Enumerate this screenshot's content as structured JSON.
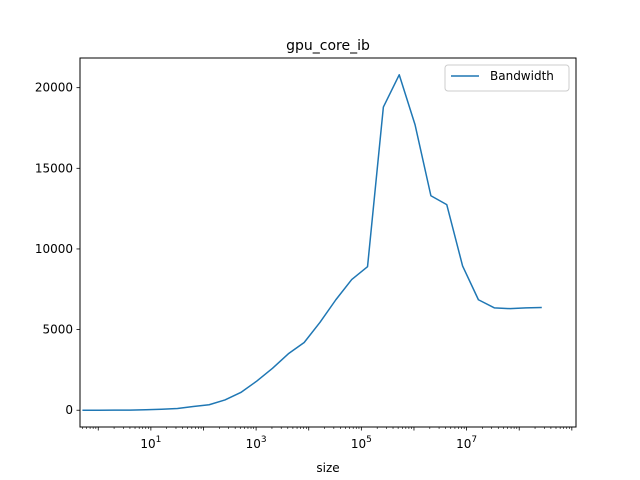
{
  "chart_data": {
    "type": "line",
    "title": "gpu_core_ib",
    "xlabel": "size",
    "ylabel": "",
    "xscale": "log",
    "xlim": [
      0.45,
      1200000000.0
    ],
    "ylim": [
      -1040,
      21840
    ],
    "xticks": [
      {
        "value": 10,
        "base": "10",
        "exp": "1"
      },
      {
        "value": 1000,
        "base": "10",
        "exp": "3"
      },
      {
        "value": 100000,
        "base": "10",
        "exp": "5"
      },
      {
        "value": 10000000,
        "base": "10",
        "exp": "7"
      }
    ],
    "yticks": [
      {
        "value": 0,
        "label": "0"
      },
      {
        "value": 5000,
        "label": "5000"
      },
      {
        "value": 10000,
        "label": "10000"
      },
      {
        "value": 15000,
        "label": "15000"
      },
      {
        "value": 20000,
        "label": "20000"
      }
    ],
    "grid": false,
    "legend_position": "top-right",
    "series": [
      {
        "name": "Bandwidth",
        "color": "#1f77b4",
        "x": [
          0.5,
          1,
          2,
          4,
          8,
          16,
          32,
          64,
          128,
          256,
          512,
          1024,
          2048,
          4096,
          8192,
          16384,
          32768,
          65536,
          131072,
          262144,
          524288,
          1048576,
          2097152,
          4194304,
          8388608,
          16777216,
          33554432,
          67108864,
          134217728,
          268435456
        ],
        "values": [
          0,
          2,
          5,
          10,
          30,
          60,
          110,
          230,
          340,
          640,
          1100,
          1800,
          2600,
          3500,
          4200,
          5450,
          6850,
          8100,
          8900,
          18800,
          20800,
          17700,
          13300,
          12750,
          8950,
          6850,
          6350,
          6300,
          6350,
          6370
        ]
      }
    ]
  }
}
